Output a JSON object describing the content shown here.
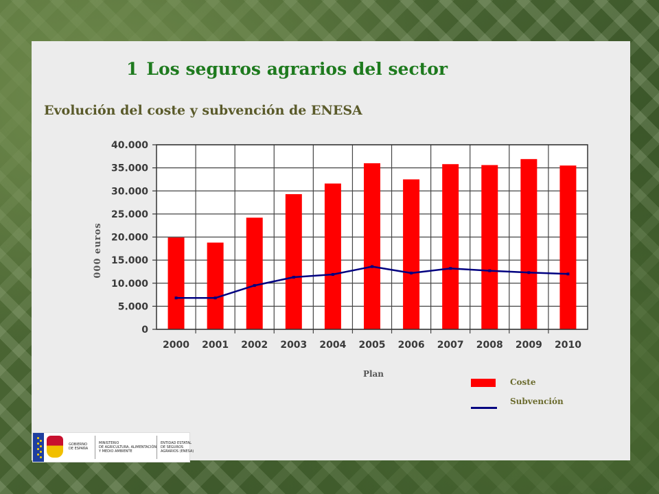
{
  "title": {
    "number": "1",
    "text": "Los seguros agrarios del sector"
  },
  "subtitle": "Evolución del coste y subvención de ENESA",
  "chart_data": {
    "type": "bar",
    "categories": [
      "2000",
      "2001",
      "2002",
      "2003",
      "2004",
      "2005",
      "2006",
      "2007",
      "2008",
      "2009",
      "2010"
    ],
    "series": [
      {
        "name": "Coste",
        "type": "bar",
        "color": "#ff0000",
        "values": [
          19900,
          18800,
          24200,
          29300,
          31600,
          36000,
          32500,
          35800,
          35600,
          36900,
          35500
        ]
      },
      {
        "name": "Subvención",
        "type": "line",
        "color": "#000080",
        "values": [
          6800,
          6800,
          9500,
          11300,
          11900,
          13600,
          12200,
          13200,
          12700,
          12300,
          12000
        ]
      }
    ],
    "ylim": [
      0,
      40000
    ],
    "yticks": [
      0,
      5000,
      10000,
      15000,
      20000,
      25000,
      30000,
      35000,
      40000
    ],
    "ytick_labels": [
      "0",
      "5.000",
      "10.000",
      "15.000",
      "20.000",
      "25.000",
      "30.000",
      "35.000",
      "40.000"
    ],
    "xlabel": "Plan",
    "ylabel": "000 euros",
    "grid": true,
    "legend_position": "bottom-right"
  },
  "legend": {
    "coste_label": "Coste",
    "subvencion_label": "Subvención"
  },
  "logos": {
    "gobierno": "GOBIERNO\nDE ESPAÑA",
    "ministerio": "MINISTERIO\nDE AGRICULTURA, ALIMENTACIÓN\nY MEDIO AMBIENTE",
    "entidad": "ENTIDAD ESTATAL\nDE SEGUROS\nAGRARIOS (ENESA)"
  }
}
